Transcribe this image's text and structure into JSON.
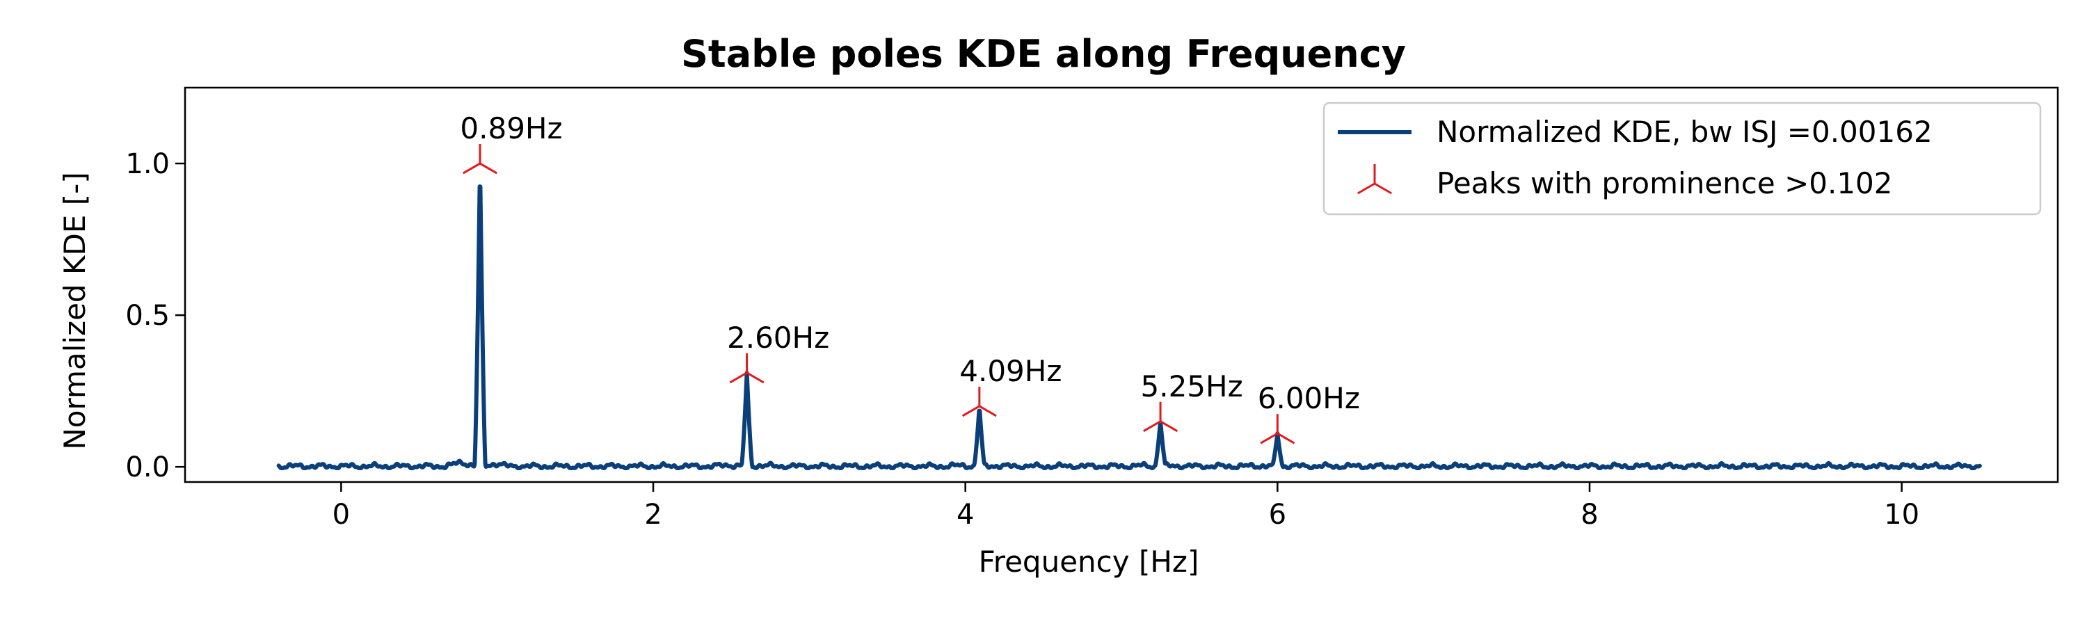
{
  "chart_data": {
    "type": "line",
    "title": "Stable poles KDE along Frequency",
    "xlabel": "Frequency [Hz]",
    "ylabel": "Normalized KDE [-]",
    "xlim": [
      -1.0,
      11.0
    ],
    "ylim": [
      -0.05,
      1.25
    ],
    "xticks": [
      0,
      2,
      4,
      6,
      8,
      10
    ],
    "xtick_labels": [
      "0",
      "2",
      "4",
      "6",
      "8",
      "10"
    ],
    "yticks": [
      0.0,
      0.5,
      1.0
    ],
    "ytick_labels": [
      "0.0",
      "0.5",
      "1.0"
    ],
    "grid": false,
    "legend_position": "top-right",
    "series": [
      {
        "name": "Normalized KDE, bw ISJ =0.00162",
        "kind": "line",
        "color": "#0a3f7a",
        "x_range": [
          -0.4,
          10.5
        ],
        "peaks": [
          {
            "x": 0.89,
            "y": 1.0
          },
          {
            "x": 2.6,
            "y": 0.31
          },
          {
            "x": 4.09,
            "y": 0.2
          },
          {
            "x": 5.25,
            "y": 0.15
          },
          {
            "x": 6.0,
            "y": 0.11
          }
        ]
      },
      {
        "name": "Peaks with prominence >0.102",
        "kind": "marker",
        "marker": "tri_down",
        "color": "#e31a1c",
        "points": [
          {
            "x": 0.89,
            "y": 1.0,
            "label": "0.89Hz"
          },
          {
            "x": 2.6,
            "y": 0.31,
            "label": "2.60Hz"
          },
          {
            "x": 4.09,
            "y": 0.2,
            "label": "4.09Hz"
          },
          {
            "x": 5.25,
            "y": 0.15,
            "label": "5.25Hz"
          },
          {
            "x": 6.0,
            "y": 0.11,
            "label": "6.00Hz"
          }
        ]
      }
    ]
  }
}
